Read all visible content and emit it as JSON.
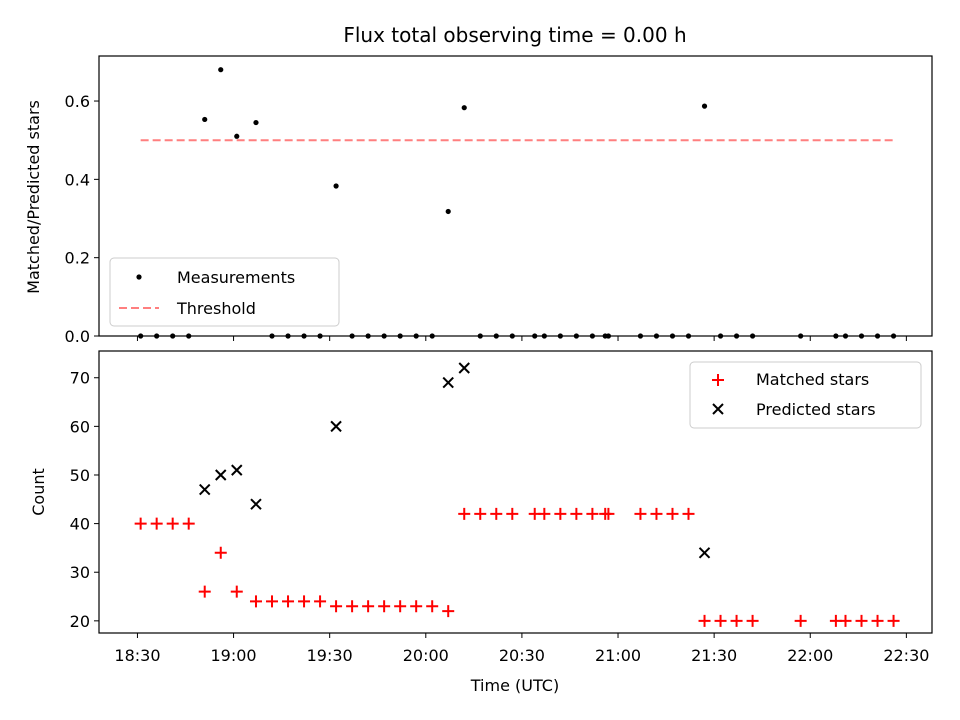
{
  "chart_data": [
    {
      "type": "scatter",
      "title": "Flux total observing time = 0.00 h",
      "xlabel": "",
      "ylabel": "Matched/Predicted stars",
      "ylim": [
        0,
        0.715
      ],
      "yticks": [
        "0.0",
        "0.2",
        "0.4",
        "0.6"
      ],
      "xlim_minutes": [
        18.0,
        278.0
      ],
      "grid": false,
      "legend_position": "lower-left",
      "series": [
        {
          "name": "Measurements",
          "kind": "scatter",
          "color": "#000000",
          "x": [
            "18:31",
            "18:36",
            "18:41",
            "18:46",
            "18:51",
            "18:56",
            "19:01",
            "19:07",
            "19:12",
            "19:17",
            "19:22",
            "19:27",
            "19:32",
            "19:37",
            "19:42",
            "19:47",
            "19:52",
            "19:57",
            "20:02",
            "20:07",
            "20:12",
            "20:17",
            "20:22",
            "20:27",
            "20:34",
            "20:37",
            "20:42",
            "20:47",
            "20:52",
            "20:56",
            "20:57",
            "21:07",
            "21:12",
            "21:17",
            "21:22",
            "21:27",
            "21:32",
            "21:37",
            "21:42",
            "21:57",
            "22:08",
            "22:11",
            "22:16",
            "22:21",
            "22:26"
          ],
          "y": [
            0,
            0,
            0,
            0,
            0.553,
            0.68,
            0.51,
            0.545,
            0,
            0,
            0,
            0,
            0.383,
            0,
            0,
            0,
            0,
            0,
            0,
            0.318,
            0.583,
            0,
            0,
            0,
            0,
            0,
            0,
            0,
            0,
            0,
            0,
            0,
            0,
            0,
            0,
            0.587,
            0,
            0,
            0,
            0,
            0,
            0,
            0,
            0,
            0
          ]
        },
        {
          "name": "Threshold",
          "kind": "line",
          "style": "dashed",
          "color": "#ff7f7f",
          "x": [
            "18:31",
            "22:26"
          ],
          "y": [
            0.5,
            0.5
          ]
        }
      ]
    },
    {
      "type": "scatter",
      "title": "",
      "xlabel": "Time (UTC)",
      "ylabel": "Count",
      "ylim": [
        17.5,
        75.5
      ],
      "yticks": [
        "20",
        "30",
        "40",
        "50",
        "60",
        "70"
      ],
      "xticks": [
        "18:30",
        "19:00",
        "19:30",
        "20:00",
        "20:30",
        "21:00",
        "21:30",
        "22:00",
        "22:30"
      ],
      "xlim_minutes": [
        18.0,
        278.0
      ],
      "grid": false,
      "legend_position": "upper-right",
      "series": [
        {
          "name": "Matched stars",
          "marker": "+",
          "color": "#ff0000",
          "x": [
            "18:31",
            "18:36",
            "18:41",
            "18:46",
            "18:51",
            "18:56",
            "19:01",
            "19:07",
            "19:12",
            "19:17",
            "19:22",
            "19:27",
            "19:32",
            "19:37",
            "19:42",
            "19:47",
            "19:52",
            "19:57",
            "20:02",
            "20:07",
            "20:12",
            "20:17",
            "20:22",
            "20:27",
            "20:34",
            "20:37",
            "20:42",
            "20:47",
            "20:52",
            "20:56",
            "20:57",
            "21:07",
            "21:12",
            "21:17",
            "21:22",
            "21:27",
            "21:32",
            "21:37",
            "21:42",
            "21:57",
            "22:08",
            "22:11",
            "22:16",
            "22:21",
            "22:26"
          ],
          "y": [
            40,
            40,
            40,
            40,
            26,
            34,
            26,
            24,
            24,
            24,
            24,
            24,
            23,
            23,
            23,
            23,
            23,
            23,
            23,
            22,
            42,
            42,
            42,
            42,
            42,
            42,
            42,
            42,
            42,
            42,
            42,
            42,
            42,
            42,
            42,
            20,
            20,
            20,
            20,
            20,
            20,
            20,
            20,
            20,
            20
          ]
        },
        {
          "name": "Predicted stars",
          "marker": "x",
          "color": "#000000",
          "x": [
            "18:51",
            "18:56",
            "19:01",
            "19:07",
            "19:32",
            "20:07",
            "20:12",
            "21:27"
          ],
          "y": [
            47,
            50,
            51,
            44,
            60,
            69,
            72,
            34
          ]
        }
      ]
    }
  ]
}
